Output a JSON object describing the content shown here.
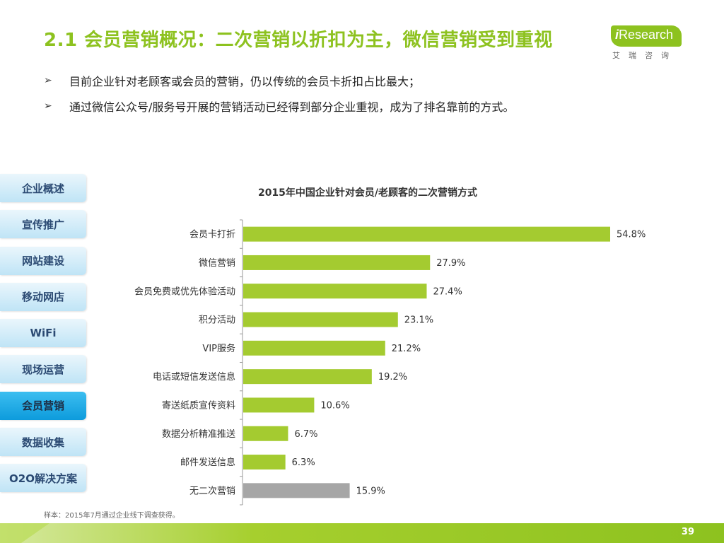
{
  "header": {
    "title": "2.1 会员营销概况：二次营销以折扣为主，微信营销受到重视"
  },
  "logo": {
    "main_i": "i",
    "main_rest": "Research",
    "sub": "艾瑞咨询"
  },
  "bullets": [
    {
      "mark": "➢",
      "text": "目前企业针对老顾客或会员的营销，仍以传统的会员卡折扣占比最大；"
    },
    {
      "mark": "➢",
      "text": "通过微信公众号/服务号开展的营销活动已经得到部分企业重视，成为了排名靠前的方式。"
    }
  ],
  "nav": {
    "items": [
      {
        "label": "企业概述",
        "active": false
      },
      {
        "label": "宣传推广",
        "active": false
      },
      {
        "label": "网站建设",
        "active": false
      },
      {
        "label": "移动网店",
        "active": false
      },
      {
        "label": "WiFi",
        "active": false
      },
      {
        "label": "现场运营",
        "active": false
      },
      {
        "label": "会员营销",
        "active": true
      },
      {
        "label": "数据收集",
        "active": false
      },
      {
        "label": "O2O解决方案",
        "active": false
      }
    ]
  },
  "chart_data": {
    "type": "bar",
    "orientation": "horizontal",
    "title": "2015年中国企业针对会员/老顾客的二次营销方式",
    "categories": [
      "会员卡打折",
      "微信营销",
      "会员免费或优先体验活动",
      "积分活动",
      "VIP服务",
      "电话或短信发送信息",
      "寄送纸质宣传资料",
      "数据分析精准推送",
      "邮件发送信息",
      "无二次营销"
    ],
    "values": [
      54.8,
      27.9,
      27.4,
      23.1,
      21.2,
      19.2,
      10.6,
      6.7,
      6.3,
      15.9
    ],
    "value_labels": [
      "54.8%",
      "27.9%",
      "27.4%",
      "23.1%",
      "21.2%",
      "19.2%",
      "10.6%",
      "6.7%",
      "6.3%",
      "15.9%"
    ],
    "xlim": [
      0,
      54.8
    ],
    "grid": false,
    "legend": "none",
    "colors": {
      "main": "#a4cb30",
      "last": "#a6a6a6"
    }
  },
  "footer": {
    "source": "样本：2015年7月通过企业线下调查获得。",
    "page_number": "39"
  }
}
